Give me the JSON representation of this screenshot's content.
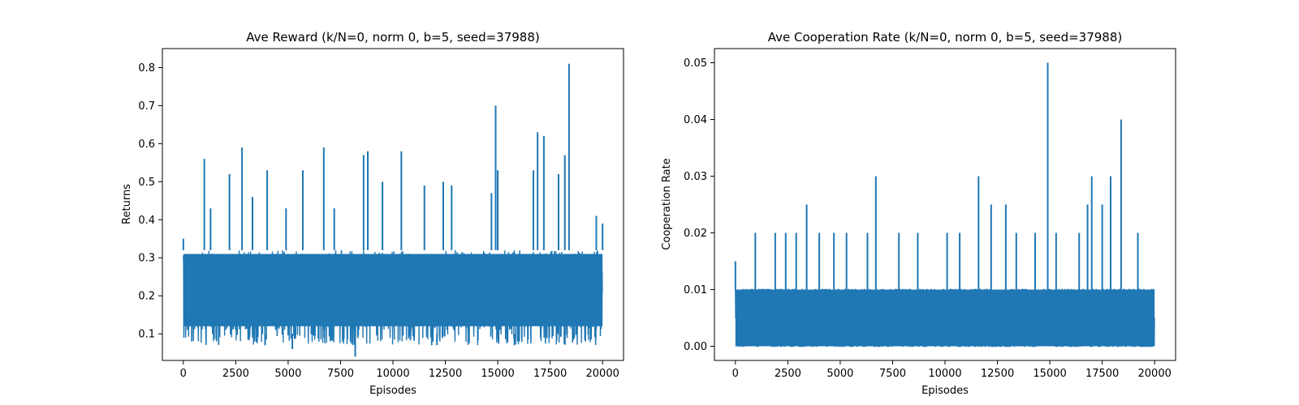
{
  "figure": {
    "background": "#ffffff"
  },
  "chart_data": [
    {
      "type": "line",
      "title": "Ave Reward (k/N=0, norm 0, b=5, seed=37988)",
      "xlabel": "Episodes",
      "ylabel": "Returns",
      "xlim": [
        -1000,
        21000
      ],
      "ylim": [
        0.03,
        0.85
      ],
      "xticks": [
        0,
        2500,
        5000,
        7500,
        10000,
        12500,
        15000,
        17500,
        20000
      ],
      "yticks": [
        0.1,
        0.2,
        0.3,
        0.4,
        0.5,
        0.6,
        0.7,
        0.8
      ],
      "ytick_decimals": 1,
      "grid": false,
      "legend": "none",
      "color": "#1f77b4",
      "series": [
        {
          "band": {
            "episodes": 20000,
            "base": [
              0.11,
              0.32
            ],
            "dips": [
              0.07,
              0.1
            ],
            "dip_share": 0.12
          },
          "spikes": [
            {
              "x": 0,
              "y": 0.35
            },
            {
              "x": 1000,
              "y": 0.56
            },
            {
              "x": 1300,
              "y": 0.43
            },
            {
              "x": 2200,
              "y": 0.52
            },
            {
              "x": 2800,
              "y": 0.59
            },
            {
              "x": 3300,
              "y": 0.46
            },
            {
              "x": 4000,
              "y": 0.53
            },
            {
              "x": 4900,
              "y": 0.43
            },
            {
              "x": 5700,
              "y": 0.53
            },
            {
              "x": 6700,
              "y": 0.59
            },
            {
              "x": 7200,
              "y": 0.43
            },
            {
              "x": 8600,
              "y": 0.57
            },
            {
              "x": 8800,
              "y": 0.58
            },
            {
              "x": 9500,
              "y": 0.5
            },
            {
              "x": 10400,
              "y": 0.58
            },
            {
              "x": 11500,
              "y": 0.49
            },
            {
              "x": 12400,
              "y": 0.5
            },
            {
              "x": 12800,
              "y": 0.49
            },
            {
              "x": 14700,
              "y": 0.47
            },
            {
              "x": 14900,
              "y": 0.7
            },
            {
              "x": 15000,
              "y": 0.53
            },
            {
              "x": 16700,
              "y": 0.53
            },
            {
              "x": 16900,
              "y": 0.63
            },
            {
              "x": 17200,
              "y": 0.62
            },
            {
              "x": 17900,
              "y": 0.52
            },
            {
              "x": 18200,
              "y": 0.57
            },
            {
              "x": 18400,
              "y": 0.81
            },
            {
              "x": 19700,
              "y": 0.41
            },
            {
              "x": 20000,
              "y": 0.39
            }
          ],
          "lows": [
            {
              "x": 8200,
              "y": 0.04
            },
            {
              "x": 5200,
              "y": 0.06
            },
            {
              "x": 3900,
              "y": 0.07
            },
            {
              "x": 12100,
              "y": 0.07
            },
            {
              "x": 15800,
              "y": 0.07
            }
          ]
        }
      ]
    },
    {
      "type": "line",
      "title": "Ave Cooperation Rate (k/N=0, norm 0, b=5, seed=37988)",
      "xlabel": "Episodes",
      "ylabel": "Cooperation Rate",
      "xlim": [
        -1000,
        21000
      ],
      "ylim": [
        -0.0025,
        0.0525
      ],
      "xticks": [
        0,
        2500,
        5000,
        7500,
        10000,
        12500,
        15000,
        17500,
        20000
      ],
      "yticks": [
        0.0,
        0.01,
        0.02,
        0.03,
        0.04,
        0.05
      ],
      "ytick_decimals": 2,
      "grid": false,
      "legend": "none",
      "color": "#1f77b4",
      "series": [
        {
          "band": {
            "episodes": 20000,
            "base": [
              0.0,
              0.01
            ],
            "dips": [
              0.0,
              0.0
            ],
            "dip_share": 0.0,
            "levels": [
              0.0,
              0.005,
              0.01
            ]
          },
          "spikes": [
            {
              "x": 0,
              "y": 0.015
            },
            {
              "x": 950,
              "y": 0.02
            },
            {
              "x": 1900,
              "y": 0.02
            },
            {
              "x": 2400,
              "y": 0.02
            },
            {
              "x": 2900,
              "y": 0.02
            },
            {
              "x": 3400,
              "y": 0.025
            },
            {
              "x": 4000,
              "y": 0.02
            },
            {
              "x": 4700,
              "y": 0.02
            },
            {
              "x": 5300,
              "y": 0.02
            },
            {
              "x": 6300,
              "y": 0.02
            },
            {
              "x": 6700,
              "y": 0.03
            },
            {
              "x": 7800,
              "y": 0.02
            },
            {
              "x": 8700,
              "y": 0.02
            },
            {
              "x": 10100,
              "y": 0.02
            },
            {
              "x": 10700,
              "y": 0.02
            },
            {
              "x": 11600,
              "y": 0.03
            },
            {
              "x": 12200,
              "y": 0.025
            },
            {
              "x": 12900,
              "y": 0.025
            },
            {
              "x": 13400,
              "y": 0.02
            },
            {
              "x": 14300,
              "y": 0.02
            },
            {
              "x": 14900,
              "y": 0.05
            },
            {
              "x": 15300,
              "y": 0.02
            },
            {
              "x": 16400,
              "y": 0.02
            },
            {
              "x": 16800,
              "y": 0.025
            },
            {
              "x": 17000,
              "y": 0.03
            },
            {
              "x": 17500,
              "y": 0.025
            },
            {
              "x": 17900,
              "y": 0.03
            },
            {
              "x": 18400,
              "y": 0.04
            },
            {
              "x": 19200,
              "y": 0.02
            }
          ],
          "lows": []
        }
      ]
    }
  ]
}
